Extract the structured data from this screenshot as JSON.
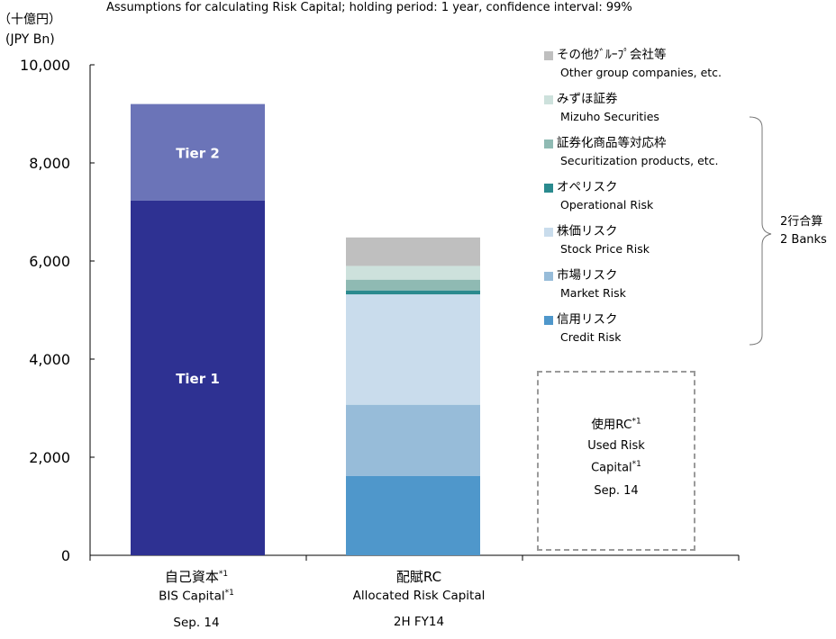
{
  "header": {
    "assumptions": "Assumptions for calculating Risk Capital; holding period: 1 year, confidence interval: 99%",
    "unit_jp": "（十億円）",
    "unit_en": "(JPY Bn)"
  },
  "chart_data": {
    "type": "bar",
    "stacked": true,
    "ylim": [
      0,
      10000
    ],
    "yticks": [
      0,
      2000,
      4000,
      6000,
      8000,
      10000
    ],
    "ytick_labels": [
      "0",
      "2,000",
      "4,000",
      "6,000",
      "8,000",
      "10,000"
    ],
    "categories": [
      {
        "jp": "自己資本",
        "en": "BIS Capital",
        "footnote": "*1",
        "date": "Sep. 14"
      },
      {
        "jp": "配賦RC",
        "en": "Allocated Risk Capital",
        "footnote": "",
        "date": "2H FY14"
      }
    ],
    "stacks": [
      {
        "category_index": 0,
        "segments": [
          {
            "name": "Tier 1",
            "value": 7230,
            "color": "#2e3192",
            "label": "Tier 1"
          },
          {
            "name": "Tier 2",
            "value": 1970,
            "color": "#6b74b8",
            "label": "Tier 2"
          }
        ]
      },
      {
        "category_index": 1,
        "segments": [
          {
            "series": "Credit Risk",
            "value": 1620
          },
          {
            "series": "Market Risk",
            "value": 1450
          },
          {
            "series": "Stock Price Risk",
            "value": 2250
          },
          {
            "series": "Operational Risk",
            "value": 80
          },
          {
            "series": "Securitization products, etc.",
            "value": 220
          },
          {
            "series": "Mizuho Securities",
            "value": 280
          },
          {
            "series": "Other group companies, etc.",
            "value": 580
          }
        ]
      }
    ],
    "legend": [
      {
        "jp": "その他ｸﾞﾙｰﾌﾟ会社等",
        "en": "Other group companies, etc.",
        "color": "#bfbfbf"
      },
      {
        "jp": "みずほ証券",
        "en": "Mizuho Securities",
        "color": "#cde1dc"
      },
      {
        "jp": "証券化商品等対応枠",
        "en": "Securitization products, etc.",
        "color": "#8fbab3"
      },
      {
        "jp": "オペリスク",
        "en": "Operational Risk",
        "color": "#2a8a8e"
      },
      {
        "jp": "株価リスク",
        "en": "Stock Price Risk",
        "color": "#c9dcec"
      },
      {
        "jp": "市場リスク",
        "en": "Market Risk",
        "color": "#97bcd9"
      },
      {
        "jp": "信用リスク",
        "en": "Credit Risk",
        "color": "#4f97cb"
      }
    ],
    "legend_placement": "right",
    "grid": false
  },
  "used_rc": {
    "jp": "使用RC",
    "en_line1": "Used Risk",
    "en_line2": "Capital",
    "footnote": "*1",
    "date": "Sep. 14"
  },
  "bracket_note": {
    "jp": "2行合算",
    "en": "2 Banks"
  }
}
